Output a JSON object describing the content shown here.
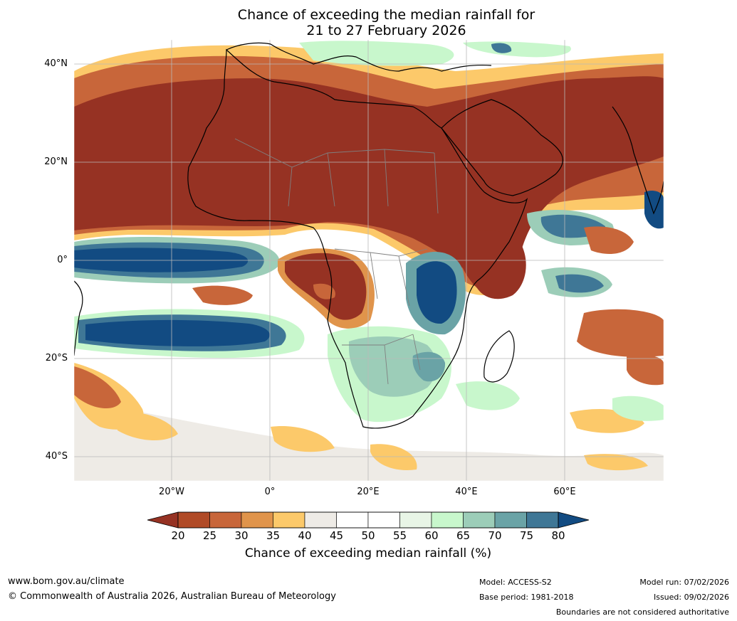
{
  "title_line1": "Chance of exceeding the median rainfall for",
  "title_line2": "21 to 27 February 2026",
  "lat_labels": [
    "40°N",
    "20°N",
    "0°",
    "20°S",
    "40°S"
  ],
  "lon_labels": [
    "20°W",
    "0°",
    "20°E",
    "40°E",
    "60°E"
  ],
  "legend": {
    "title": "Chance of exceeding median rainfall (%)",
    "ticks": [
      "20",
      "25",
      "30",
      "35",
      "40",
      "45",
      "50",
      "55",
      "60",
      "65",
      "70",
      "75",
      "80"
    ],
    "colors": [
      "#963223",
      "#b04a26",
      "#c8663a",
      "#e0944b",
      "#fcc96a",
      "#eeebe6",
      "#ffffff",
      "#ffffff",
      "#e8f5e6",
      "#c8f7cc",
      "#9ccdb8",
      "#6aa3a6",
      "#3f7796",
      "#124b82"
    ],
    "under_color": "#963223",
    "over_color": "#124b82"
  },
  "footer": {
    "website": "www.bom.gov.au/climate",
    "copyright": "© Commonwealth of Australia 2026, Australian Bureau of Meteorology",
    "model": "Model: ACCESS-S2",
    "base_period": "Base period: 1981-2018",
    "model_run": "Model run: 07/02/2026",
    "issued": "Issued: 09/02/2026",
    "disclaimer": "Boundaries are not considered authoritative"
  },
  "map_colors": {
    "land_dry": "#963223",
    "dry2": "#c8663a",
    "dry3": "#e0944b",
    "dry4": "#fcc96a",
    "neutral": "#eeebe6",
    "wet1": "#c8f7cc",
    "wet2": "#9ccdb8",
    "wet3": "#6aa3a6",
    "wet4": "#3f7796",
    "wet5": "#124b82",
    "coast": "#000000",
    "border": "#808080"
  }
}
